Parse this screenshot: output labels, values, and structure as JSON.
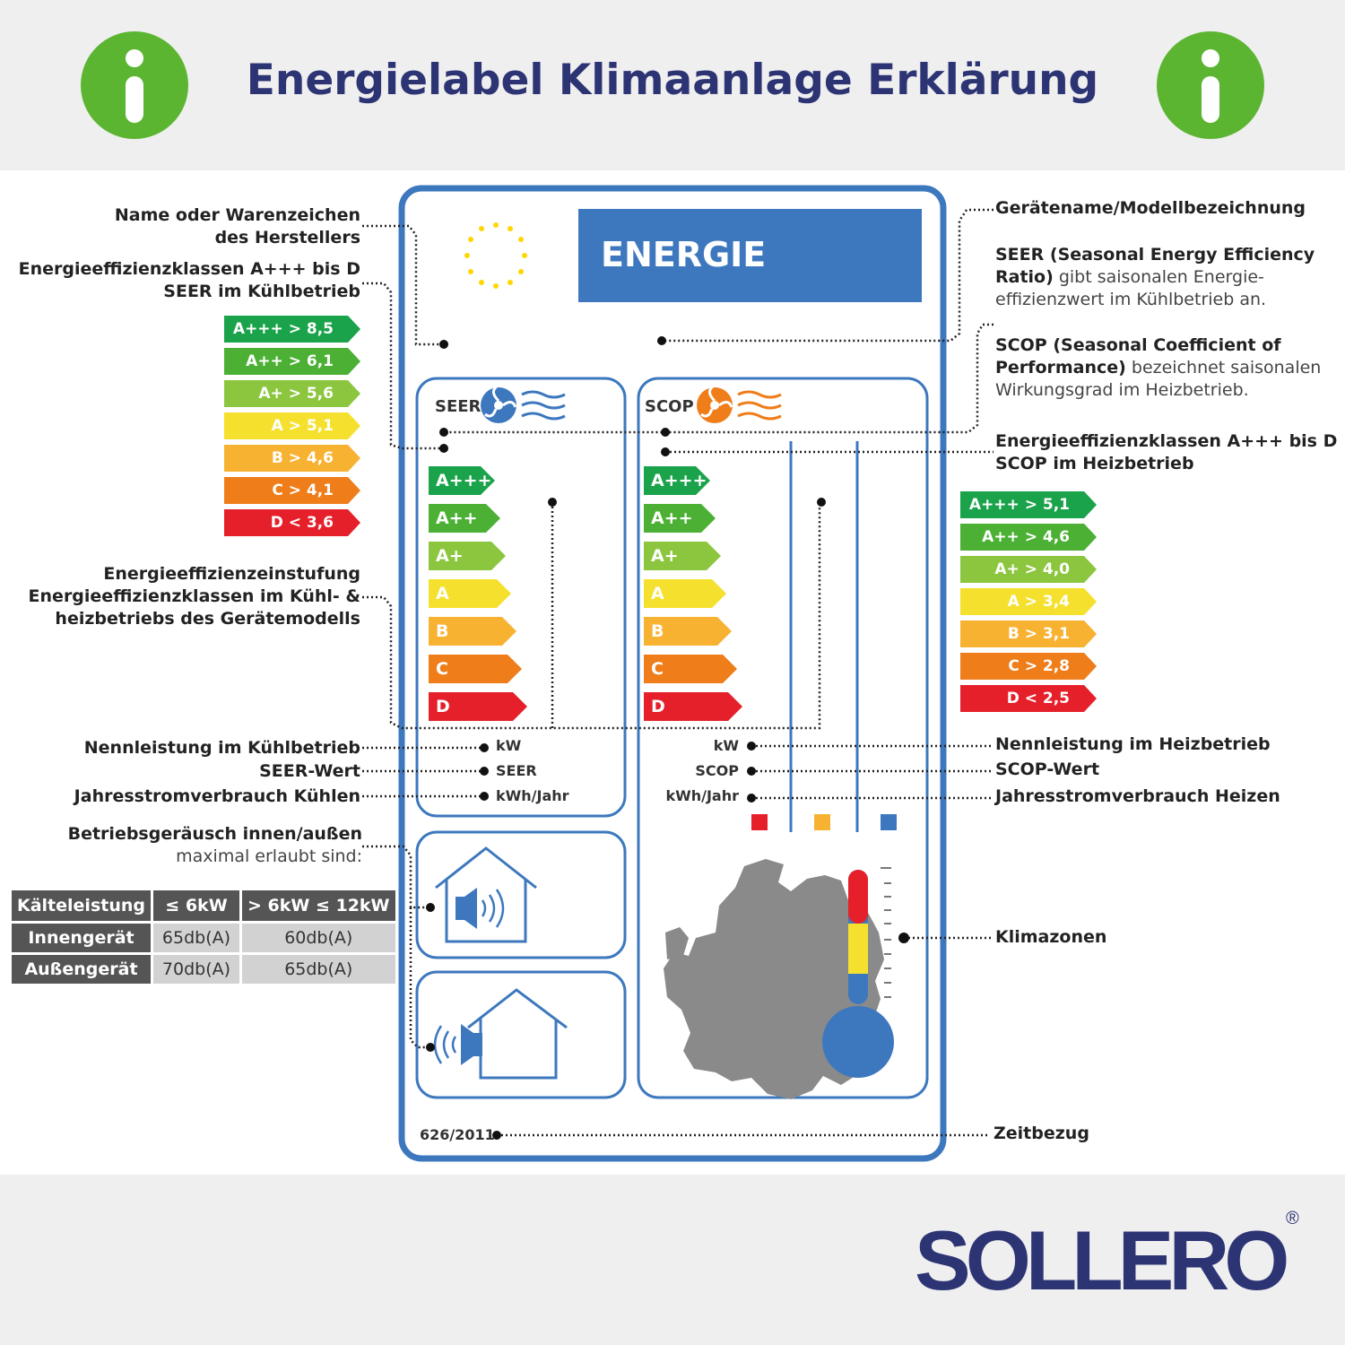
{
  "header": {
    "title": "Energielabel Klimaanlage Erklärung"
  },
  "brand": {
    "name": "SOLLERO",
    "registered": "®"
  },
  "colors": {
    "accent_green": "#5cb531",
    "brand_navy": "#2d3474",
    "label_blue": "#3d78be"
  },
  "label": {
    "energie": "ENERGIE",
    "seer": "SEER",
    "scop": "SCOP",
    "classes": [
      "A+++",
      "A++",
      "A+",
      "A",
      "B",
      "C",
      "D"
    ],
    "units_left": [
      "kW",
      "SEER",
      "kWh/Jahr"
    ],
    "units_right": [
      "kW",
      "SCOP",
      "kWh/Jahr"
    ],
    "regulation": "626/2011"
  },
  "callouts_left": {
    "manufacturer": [
      "Name oder Warenzeichen",
      "des Herstellers"
    ],
    "seer_classes": [
      "Energieeffizienzklassen A+++ bis D",
      "SEER im Kühlbetrieb"
    ],
    "rating": [
      "Energieeffizienzeinstufung",
      "Energieeffizienzklassen im Kühl- &",
      "heizbetriebs des Gerätemodells"
    ],
    "cooling_power": "Nennleistung im Kühlbetrieb",
    "seer_value": "SEER-Wert",
    "cooling_consumption": "Jahresstromverbrauch Kühlen",
    "noise": "Betriebsgeräusch innen/außen",
    "noise_sub": "maximal erlaubt sind:"
  },
  "callouts_right": {
    "model": "Gerätename/Modellbezeichnung",
    "seer_desc_bold": "SEER (Seasonal Energy Efficiency",
    "seer_desc_bold2": "Ratio)",
    "seer_desc_rest": " gibt saisonalen Energie-",
    "seer_desc_rest2": "effizienzwert im Kühlbetrieb an.",
    "scop_desc_bold": "SCOP (Seasonal Coefficient of",
    "scop_desc_bold2": "Performance)",
    "scop_desc_rest": " bezeichnet saisonalen",
    "scop_desc_rest2": "Wirkungsgrad im Heizbetrieb.",
    "scop_classes": [
      "Energieeffizienzklassen A+++ bis D",
      "SCOP im Heizbetrieb"
    ],
    "heating_power": "Nennleistung im Heizbetrieb",
    "scop_value": "SCOP-Wert",
    "heating_consumption": "Jahresstromverbrauch Heizen",
    "climate_zones": "Klimazonen",
    "time_ref": "Zeitbezug"
  },
  "seer_scale": [
    {
      "label": "A+++ > 8,5",
      "color": "#1aa34a"
    },
    {
      "label": "A++ > 6,1",
      "color": "#4bb033"
    },
    {
      "label": "A+ > 5,6",
      "color": "#8cc63f"
    },
    {
      "label": "A > 5,1",
      "color": "#f5e12d"
    },
    {
      "label": "B > 4,6",
      "color": "#f8b232"
    },
    {
      "label": "C > 4,1",
      "color": "#ee7d1a"
    },
    {
      "label": "D < 3,6",
      "color": "#e5202a"
    }
  ],
  "scop_scale": [
    {
      "label": "A+++ > 5,1",
      "color": "#1aa34a"
    },
    {
      "label": "A++ > 4,6",
      "color": "#4bb033"
    },
    {
      "label": "A+ > 4,0",
      "color": "#8cc63f"
    },
    {
      "label": "A > 3,4",
      "color": "#f5e12d"
    },
    {
      "label": "B > 3,1",
      "color": "#f8b232"
    },
    {
      "label": "C > 2,8",
      "color": "#ee7d1a"
    },
    {
      "label": "D < 2,5",
      "color": "#e5202a"
    }
  ],
  "noise_table": {
    "headers": [
      "Kälteleistung",
      "≤ 6kW",
      "> 6kW ≤ 12kW"
    ],
    "rows": [
      {
        "label": "Innengerät",
        "values": [
          "65db(A)",
          "60db(A)"
        ]
      },
      {
        "label": "Außengerät",
        "values": [
          "70db(A)",
          "65db(A)"
        ]
      }
    ]
  },
  "label_bar_colors": [
    "#1aa34a",
    "#4bb033",
    "#8cc63f",
    "#f5e12d",
    "#f8b232",
    "#ee7d1a",
    "#e5202a"
  ],
  "climate_squares": [
    "#e5202a",
    "#f8b232",
    "#3d78be"
  ]
}
